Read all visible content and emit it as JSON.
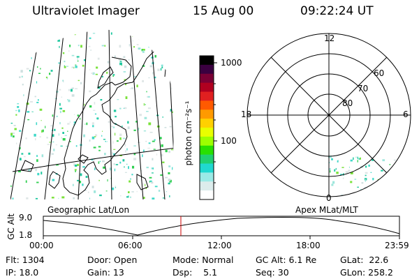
{
  "header": {
    "instrument": "Ultraviolet Imager",
    "date": "15 Aug 00",
    "time": "09:22:24 UT"
  },
  "colorbar": {
    "unit_label": "photon cm⁻²s⁻¹",
    "scale": "log",
    "ticks": [
      "1000",
      "100"
    ],
    "colors": [
      "#000000",
      "#3a0040",
      "#7a0035",
      "#b00020",
      "#e02020",
      "#ff5a00",
      "#ff9a00",
      "#ffd000",
      "#e8ff00",
      "#9cff00",
      "#28e000",
      "#20d070",
      "#20d8d0",
      "#9aeae6",
      "#dcecec",
      "#ffffff"
    ]
  },
  "left_panel": {
    "label": "Geographic Lat/Lon"
  },
  "polar_plot": {
    "label": "Apex MLat/MLT",
    "mlt_labels": [
      "12",
      "18",
      "6",
      "0"
    ],
    "lat_labels": [
      "60",
      "70",
      "80"
    ]
  },
  "timeline": {
    "axis_label": "GC Alt",
    "y_ticks": [
      "9.0",
      "1.8"
    ],
    "x_ticks": [
      "00:00",
      "06:00",
      "12:00",
      "18:00",
      "23:59"
    ],
    "marker_time": "09:22:24",
    "marker_color": "#cc0000"
  },
  "info": {
    "flt": "Flt: 1304",
    "ip": "IP: 18.0",
    "door": "Door: Open",
    "gain": "Gain: 13",
    "mode": "Mode: Normal",
    "dsp": "Dsp:    5.1",
    "gc_alt": "GC Alt: 6.1 Re",
    "seq": "Seq: 30",
    "glat": "GLat:  22.6",
    "glon": "GLon: 258.2"
  }
}
